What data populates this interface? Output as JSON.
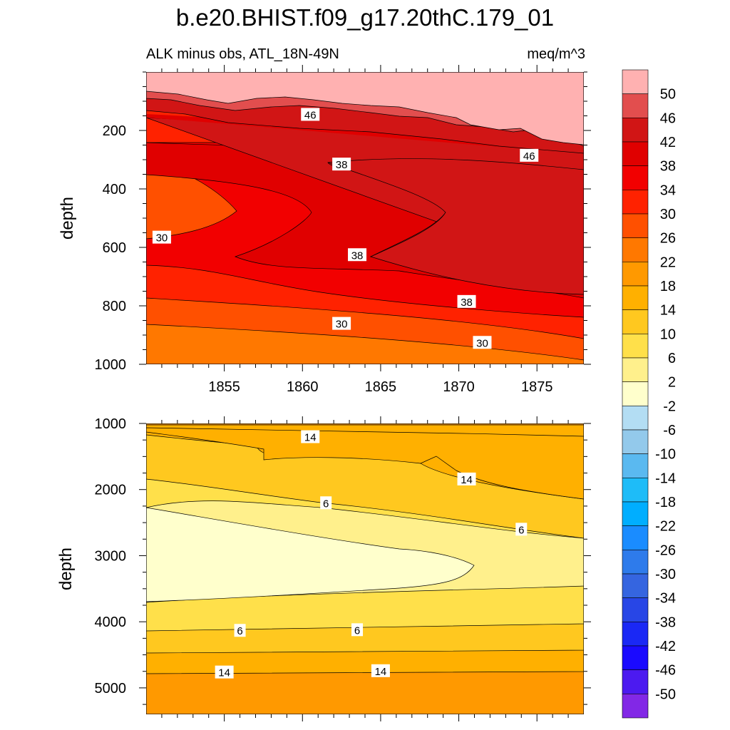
{
  "figure_title": "b.e20.BHIST.f09_g17.20thC.179_01",
  "chart_data": [
    {
      "type": "contour",
      "panel": "upper",
      "title_left": "ALK minus obs, ATL_18N-49N",
      "title_right": "meq/m^3",
      "ylabel": "depth",
      "xlim": [
        1850,
        1878
      ],
      "ylim": [
        0,
        1000
      ],
      "y_reversed": true,
      "xticks": [
        1855,
        1860,
        1865,
        1870,
        1875
      ],
      "yticks": [
        200,
        400,
        600,
        800,
        1000
      ],
      "contour_labels": [
        {
          "text": "46",
          "x": 1860.5,
          "y": 145
        },
        {
          "text": "46",
          "x": 1874.5,
          "y": 285
        },
        {
          "text": "38",
          "x": 1862.5,
          "y": 315
        },
        {
          "text": "38",
          "x": 1863.5,
          "y": 625
        },
        {
          "text": "38",
          "x": 1870.5,
          "y": 785
        },
        {
          "text": "30",
          "x": 1851,
          "y": 565
        },
        {
          "text": "30",
          "x": 1862.5,
          "y": 860
        },
        {
          "text": "30",
          "x": 1871.5,
          "y": 925
        }
      ]
    },
    {
      "type": "contour",
      "panel": "lower",
      "ylabel": "depth",
      "xlim": [
        1850,
        1878
      ],
      "ylim": [
        1000,
        5400
      ],
      "y_reversed": true,
      "xticks": [
        1855,
        1860,
        1865,
        1870,
        1875
      ],
      "yticks": [
        1000,
        2000,
        3000,
        4000,
        5000
      ],
      "contour_labels": [
        {
          "text": "14",
          "x": 1860.5,
          "y": 1200
        },
        {
          "text": "14",
          "x": 1870.5,
          "y": 1840
        },
        {
          "text": "6",
          "x": 1861.5,
          "y": 2200
        },
        {
          "text": "6",
          "x": 1874,
          "y": 2600
        },
        {
          "text": "6",
          "x": 1856,
          "y": 4130
        },
        {
          "text": "6",
          "x": 1863.5,
          "y": 4120
        },
        {
          "text": "14",
          "x": 1855,
          "y": 4760
        },
        {
          "text": "14",
          "x": 1865,
          "y": 4740
        }
      ]
    }
  ],
  "colorbar": {
    "labels": [
      "50",
      "46",
      "42",
      "38",
      "34",
      "30",
      "26",
      "22",
      "18",
      "14",
      "10",
      "6",
      "2",
      "-2",
      "-6",
      "-10",
      "-14",
      "-18",
      "-22",
      "-26",
      "-30",
      "-34",
      "-38",
      "-42",
      "-46",
      "-50"
    ],
    "colors": [
      "#FFB1B1",
      "#E24E4E",
      "#D11515",
      "#E00000",
      "#F20000",
      "#FF2200",
      "#FF5000",
      "#FF7800",
      "#FF9900",
      "#FFB000",
      "#FFC81F",
      "#FFE04A",
      "#FFF08C",
      "#FFFFCC",
      "#B3DDF3",
      "#93C9EB",
      "#5AB9F0",
      "#1EBCF8",
      "#00AEFF",
      "#1A8CFF",
      "#2E7BEB",
      "#3565E0",
      "#2846E6",
      "#1A28F5",
      "#1A0AFF",
      "#4C1AF0",
      "#8228E6"
    ]
  }
}
